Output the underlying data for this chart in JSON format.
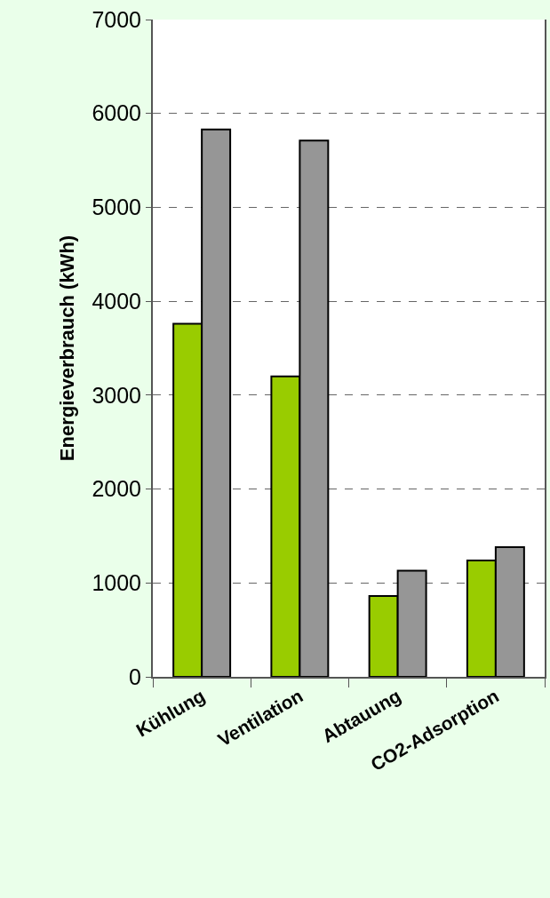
{
  "chart_data": {
    "type": "bar",
    "ylabel": "Energieverbrauch (kWh)",
    "categories": [
      "Kühlung",
      "Ventilation",
      "Abtauung",
      "CO2-Adsorption"
    ],
    "series": [
      {
        "color": "#99cc00",
        "values": [
          3760,
          3200,
          860,
          1240
        ]
      },
      {
        "color": "#969696",
        "values": [
          5830,
          5710,
          1130,
          1380
        ]
      }
    ],
    "ylim": [
      0,
      7000
    ],
    "yticks": [
      0,
      1000,
      2000,
      3000,
      4000,
      5000,
      6000,
      7000
    ],
    "grid": "y"
  }
}
